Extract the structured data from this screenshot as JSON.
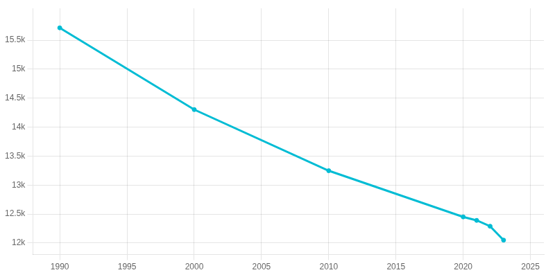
{
  "chart_data": {
    "type": "line",
    "x": [
      1990,
      2000,
      2010,
      2020,
      2021,
      2022,
      2023
    ],
    "values": [
      15713,
      14302,
      13247,
      12450,
      12390,
      12289,
      12049
    ],
    "color": "#00BCD4",
    "marker": "circle",
    "xlim": [
      1988,
      2026
    ],
    "xticks": [
      1990,
      1995,
      2000,
      2005,
      2010,
      2015,
      2020,
      2025
    ],
    "ylim": [
      11800,
      16050
    ],
    "yticks": [
      {
        "value": 12000,
        "label": "12k"
      },
      {
        "value": 12500,
        "label": "12.5k"
      },
      {
        "value": 13000,
        "label": "13k"
      },
      {
        "value": 13500,
        "label": "13.5k"
      },
      {
        "value": 14000,
        "label": "14k"
      },
      {
        "value": 14500,
        "label": "14.5k"
      },
      {
        "value": 15000,
        "label": "15k"
      },
      {
        "value": 15500,
        "label": "15.5k"
      }
    ],
    "grid": true
  }
}
